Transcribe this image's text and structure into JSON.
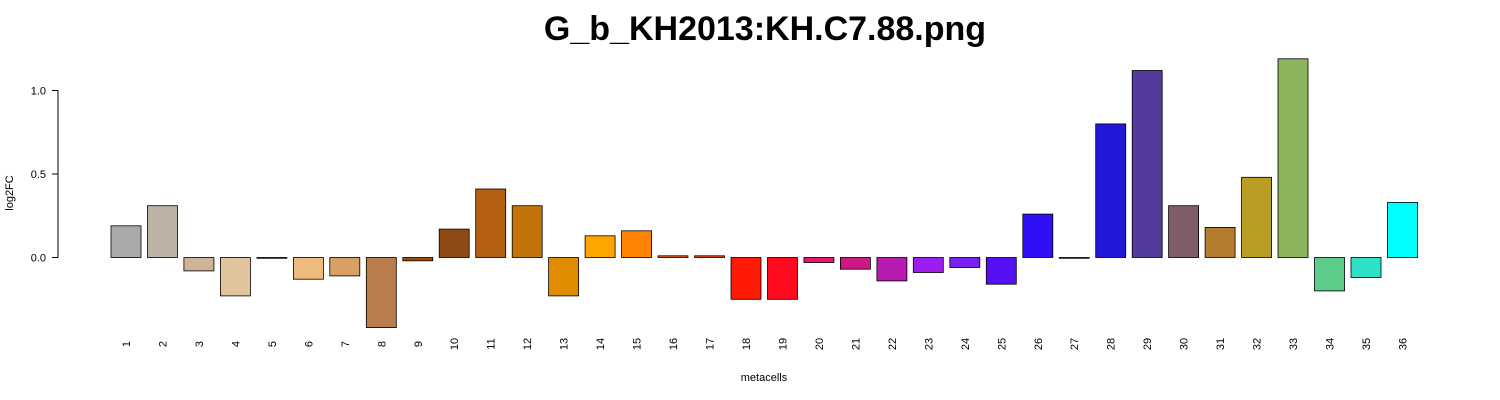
{
  "chart_data": {
    "type": "bar",
    "title": "G_b_KH2013:KH.C7.88.png",
    "xlabel": "metacells",
    "ylabel": "log2FC",
    "yticks": [
      "0.0",
      "0.5",
      "1.0"
    ],
    "ylim": [
      -0.42,
      1.2
    ],
    "grid": false,
    "categories": [
      "1",
      "2",
      "3",
      "4",
      "5",
      "6",
      "7",
      "8",
      "9",
      "10",
      "11",
      "12",
      "13",
      "14",
      "15",
      "16",
      "17",
      "18",
      "19",
      "20",
      "21",
      "22",
      "23",
      "24",
      "25",
      "26",
      "27",
      "28",
      "29",
      "30",
      "31",
      "32",
      "33",
      "34",
      "35",
      "36"
    ],
    "values": [
      0.19,
      0.31,
      -0.08,
      -0.23,
      -0.005,
      -0.13,
      -0.11,
      -0.42,
      -0.02,
      0.17,
      0.41,
      0.31,
      -0.23,
      0.13,
      0.16,
      0.01,
      0.01,
      -0.25,
      -0.25,
      -0.03,
      -0.07,
      -0.14,
      -0.09,
      -0.06,
      -0.16,
      0.26,
      -0.005,
      0.8,
      1.12,
      0.31,
      0.18,
      0.48,
      1.19,
      -0.2,
      -0.12,
      0.33
    ],
    "colors": [
      "#a9a9a9",
      "#bcb2a6",
      "#cdb496",
      "#e1c49c",
      "#fff3e0",
      "#edbb7f",
      "#d8a065",
      "#b87d4b",
      "#9c4a10",
      "#904b14",
      "#b36010",
      "#c3730a",
      "#e08c00",
      "#ffa500",
      "#ff8200",
      "#f06010",
      "#e84d14",
      "#ff1a06",
      "#ff0a1e",
      "#e3186a",
      "#cb1882",
      "#b61aaf",
      "#9c1df0",
      "#7820ee",
      "#5510f2",
      "#2e0ff6",
      "#2424b0",
      "#2218d8",
      "#533a9c",
      "#805c6a",
      "#b27d2c",
      "#b99d24",
      "#8cb45a",
      "#5ccd8a",
      "#2de0c8",
      "#00ffff"
    ]
  }
}
